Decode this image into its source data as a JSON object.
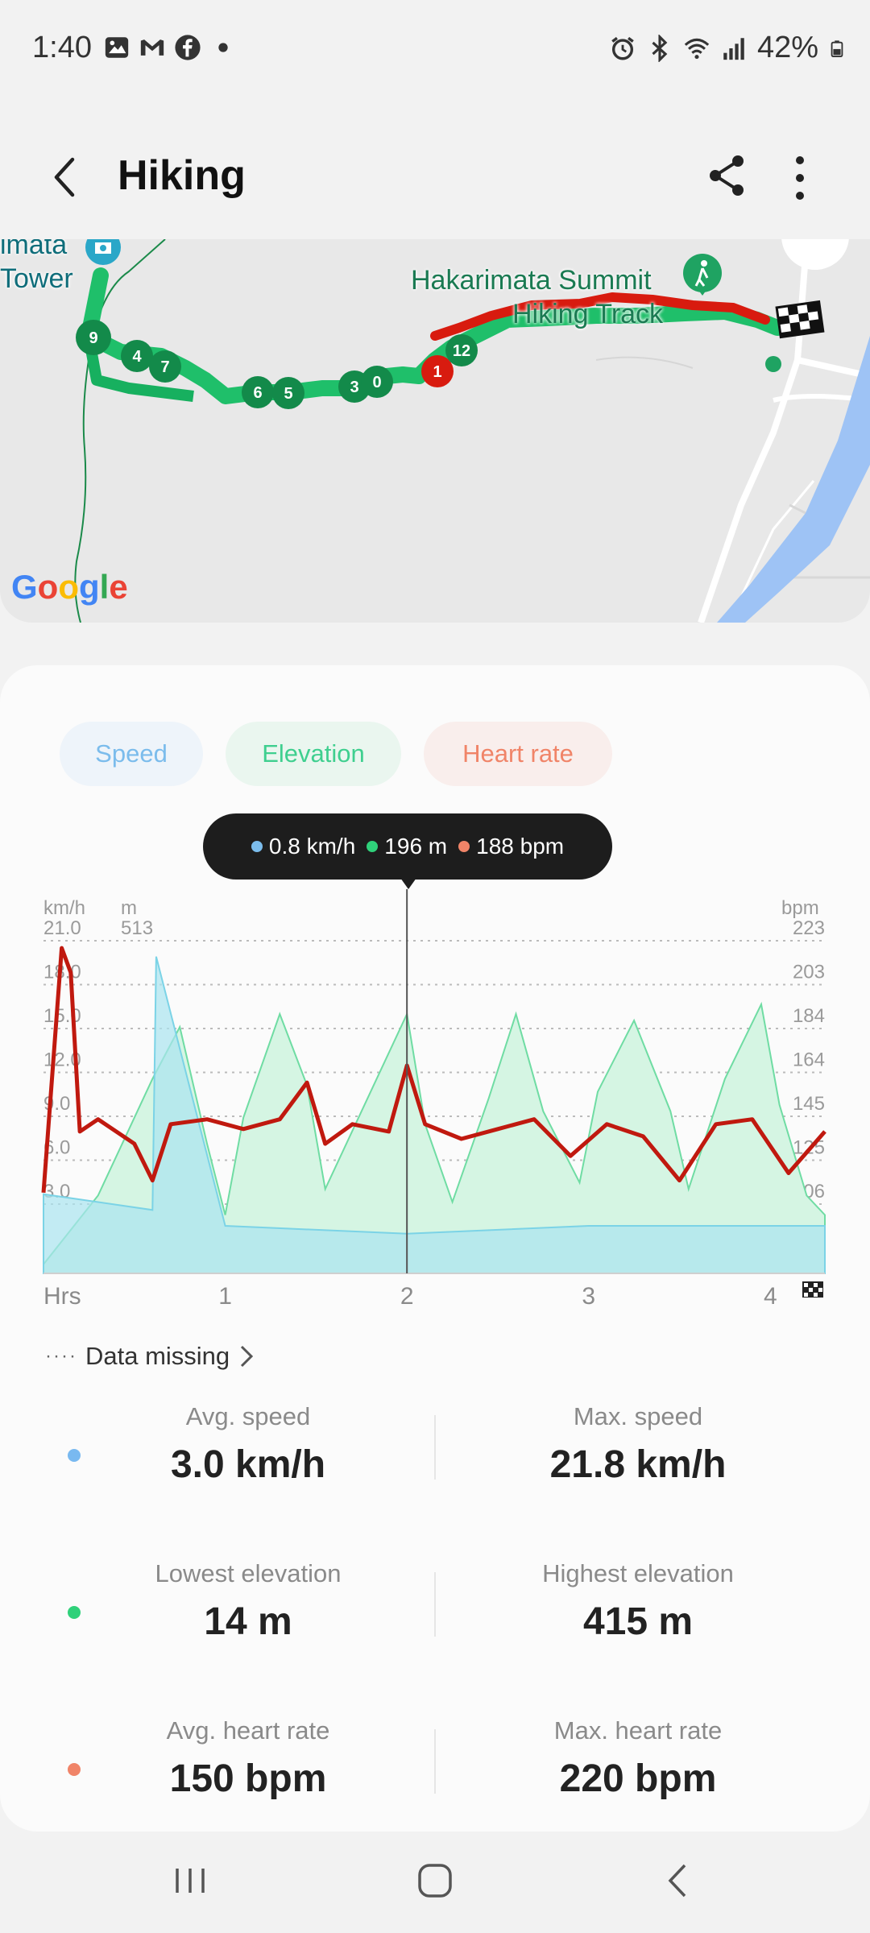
{
  "status_bar": {
    "time": "1:40",
    "battery": "42%",
    "left_icons": [
      "gallery-icon",
      "gmail-icon",
      "facebook-icon",
      "dot-icon"
    ],
    "right_icons": [
      "alarm-icon",
      "bluetooth-icon",
      "wifi-icon",
      "signal-icon",
      "battery-icon"
    ]
  },
  "header": {
    "title": "Hiking",
    "back_icon": "chevron-left-icon",
    "share_icon": "share-icon",
    "more_icon": "more-vertical-icon"
  },
  "map": {
    "labels": [
      "imata",
      "Tower",
      "Hakarimata Summit",
      "Hiking Track"
    ],
    "markers": [
      "9",
      "4",
      "7",
      "6",
      "5",
      "3",
      "0",
      "1",
      "12"
    ],
    "logo": "Google",
    "colors": {
      "route_green": "#1fbf6a",
      "route_red": "#d81b0f",
      "water": "#9ec3f5",
      "marker_dark": "#138a4a"
    }
  },
  "chips": {
    "speed": "Speed",
    "elevation": "Elevation",
    "heart_rate": "Heart rate"
  },
  "tooltip": {
    "speed": "0.8 km/h",
    "elevation": "196 m",
    "heart_rate": "188 bpm"
  },
  "chart_data": {
    "type": "area",
    "x_unit": "Hrs",
    "units": {
      "speed": "km/h",
      "elevation": "m",
      "heart_rate": "bpm"
    },
    "speed_ticks": [
      "21.0",
      "18.0",
      "15.0",
      "12.0",
      "9.0",
      "6.0",
      "3.0"
    ],
    "elevation_ticks": [
      "513"
    ],
    "heart_rate_ticks": [
      "223",
      "203",
      "184",
      "164",
      "145",
      "125",
      "106"
    ],
    "x_ticks": [
      "1",
      "2",
      "3",
      "4"
    ],
    "xlim": [
      0,
      4.3
    ],
    "series": [
      {
        "name": "Elevation",
        "color": "#3fcf8f",
        "x": [
          0,
          0.3,
          0.6,
          0.75,
          0.9,
          1.0,
          1.1,
          1.3,
          1.45,
          1.55,
          1.75,
          2.0,
          2.1,
          2.25,
          2.45,
          2.6,
          2.75,
          2.95,
          3.05,
          3.25,
          3.45,
          3.55,
          3.75,
          3.95,
          4.05,
          4.2,
          4.3
        ],
        "values": [
          14,
          120,
          300,
          380,
          200,
          90,
          240,
          400,
          290,
          130,
          250,
          400,
          230,
          110,
          270,
          400,
          250,
          140,
          280,
          390,
          250,
          130,
          300,
          415,
          260,
          120,
          90
        ]
      },
      {
        "name": "Heart rate",
        "color": "#d81b0f",
        "x": [
          0,
          0.1,
          0.15,
          0.2,
          0.3,
          0.5,
          0.6,
          0.7,
          0.9,
          1.1,
          1.3,
          1.45,
          1.55,
          1.7,
          1.9,
          2.0,
          2.1,
          2.3,
          2.5,
          2.7,
          2.9,
          3.1,
          3.3,
          3.5,
          3.7,
          3.9,
          4.1,
          4.3
        ],
        "values": [
          120,
          220,
          210,
          145,
          150,
          140,
          125,
          148,
          150,
          146,
          150,
          165,
          140,
          148,
          145,
          172,
          148,
          142,
          146,
          150,
          135,
          148,
          143,
          125,
          148,
          150,
          128,
          145
        ]
      },
      {
        "name": "Speed",
        "color": "#7bd3e6",
        "x": [
          0,
          0.6,
          0.62,
          1.0,
          2.0,
          3.0,
          4.3
        ],
        "values": [
          5,
          4,
          20,
          3,
          2.5,
          3,
          3
        ]
      }
    ]
  },
  "data_missing": {
    "dots": "····",
    "label": "Data missing"
  },
  "stats": {
    "speed": {
      "avg_label": "Avg. speed",
      "avg_value": "3.0 km/h",
      "max_label": "Max. speed",
      "max_value": "21.8 km/h",
      "color": "#79b9f0"
    },
    "elevation": {
      "low_label": "Lowest elevation",
      "low_value": "14 m",
      "high_label": "Highest elevation",
      "high_value": "415 m",
      "color": "#2fd17a"
    },
    "heart_rate": {
      "avg_label": "Avg. heart rate",
      "avg_value": "150 bpm",
      "max_label": "Max. heart rate",
      "max_value": "220 bpm",
      "color": "#f08468"
    }
  },
  "nav": {
    "recents": "recents-icon",
    "home": "home-icon",
    "back": "back-icon"
  }
}
